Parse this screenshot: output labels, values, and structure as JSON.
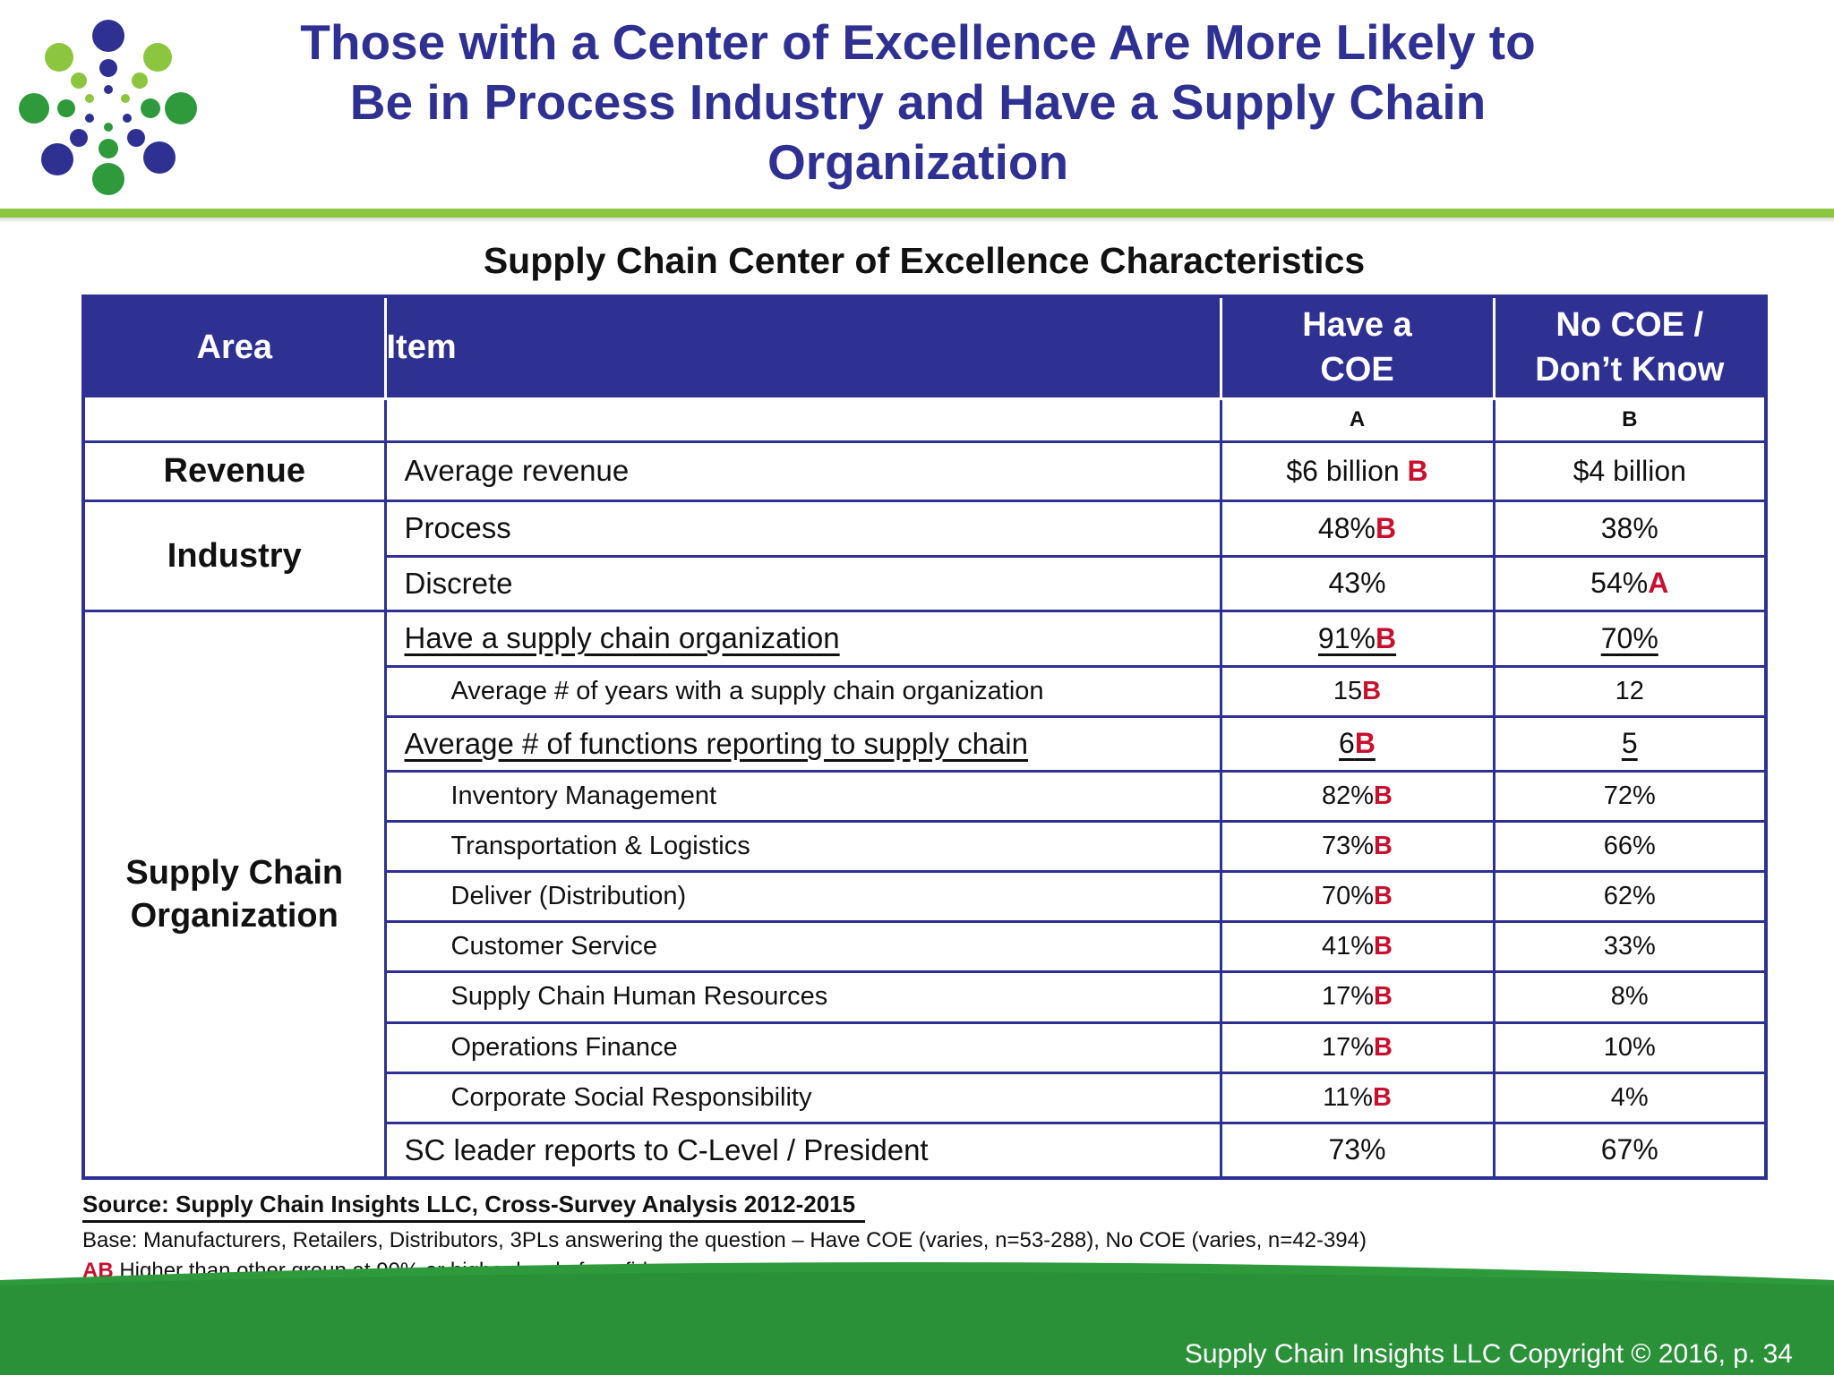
{
  "slide": {
    "title": "Those with a Center of Excellence Are More Likely to Be in Process Industry and Have a Supply Chain Organization",
    "copyright": "Supply Chain Insights LLC Copyright © 2016, p. 34"
  },
  "colors": {
    "navy": "#2e3192",
    "green": "#8cc63f",
    "dark_green": "#2e9a3c",
    "sig_red": "#c8102e"
  },
  "table": {
    "title": "Supply Chain Center of Excellence Characteristics",
    "headers": {
      "area": "Area",
      "item": "Item",
      "coe_line1": "Have a",
      "coe_line2": "COE",
      "nocoe_line1": "No COE /",
      "nocoe_line2": "Don’t Know"
    },
    "sig_labels": {
      "coe": "A",
      "nocoe": "B"
    },
    "areas": {
      "revenue": "Revenue",
      "industry": "Industry",
      "sco_line1": "Supply Chain",
      "sco_line2": "Organization"
    },
    "rows": [
      {
        "item": "Average revenue",
        "coe": "$6 billion ",
        "coe_mark": "B",
        "nocoe": "$4 billion",
        "nocoe_mark": ""
      },
      {
        "item": "Process",
        "coe": "48%",
        "coe_mark": "B",
        "nocoe": "38%",
        "nocoe_mark": ""
      },
      {
        "item": "Discrete",
        "coe": "43%",
        "coe_mark": "",
        "nocoe": "54%",
        "nocoe_mark": "A"
      },
      {
        "item": "Have a supply chain organization",
        "coe": "91%",
        "coe_mark": "B",
        "nocoe": "70%",
        "nocoe_mark": ""
      },
      {
        "item": "Average # of years with a supply chain organization",
        "coe": "15",
        "coe_mark": "B",
        "nocoe": "12",
        "nocoe_mark": ""
      },
      {
        "item": "Average # of functions reporting to supply chain",
        "coe": "6",
        "coe_mark": "B",
        "nocoe": "5",
        "nocoe_mark": ""
      },
      {
        "item": "Inventory Management",
        "coe": "82%",
        "coe_mark": "B",
        "nocoe": "72%",
        "nocoe_mark": ""
      },
      {
        "item": "Transportation & Logistics",
        "coe": "73%",
        "coe_mark": "B",
        "nocoe": "66%",
        "nocoe_mark": ""
      },
      {
        "item": "Deliver (Distribution)",
        "coe": "70%",
        "coe_mark": "B",
        "nocoe": "62%",
        "nocoe_mark": ""
      },
      {
        "item": "Customer Service",
        "coe": "41%",
        "coe_mark": "B",
        "nocoe": "33%",
        "nocoe_mark": ""
      },
      {
        "item": "Supply Chain Human Resources",
        "coe": "17%",
        "coe_mark": "B",
        "nocoe": "8%",
        "nocoe_mark": ""
      },
      {
        "item": "Operations Finance",
        "coe": "17%",
        "coe_mark": "B",
        "nocoe": "10%",
        "nocoe_mark": ""
      },
      {
        "item": "Corporate Social Responsibility",
        "coe": "11%",
        "coe_mark": "B",
        "nocoe": "4%",
        "nocoe_mark": ""
      },
      {
        "item": "SC leader reports to C-Level / President",
        "coe": "73%",
        "coe_mark": "",
        "nocoe": "67%",
        "nocoe_mark": ""
      }
    ]
  },
  "notes": {
    "source": "Source:  Supply Chain Insights LLC, Cross-Survey Analysis 2012-2015",
    "base": "Base:  Manufacturers, Retailers, Distributors, 3PLs answering the question – Have COE (varies, n=53-288), No COE (varies, n=42-394)",
    "legend_mark": "AB",
    "legend_text": " Higher than other group at 90% or higher level of confidence"
  }
}
